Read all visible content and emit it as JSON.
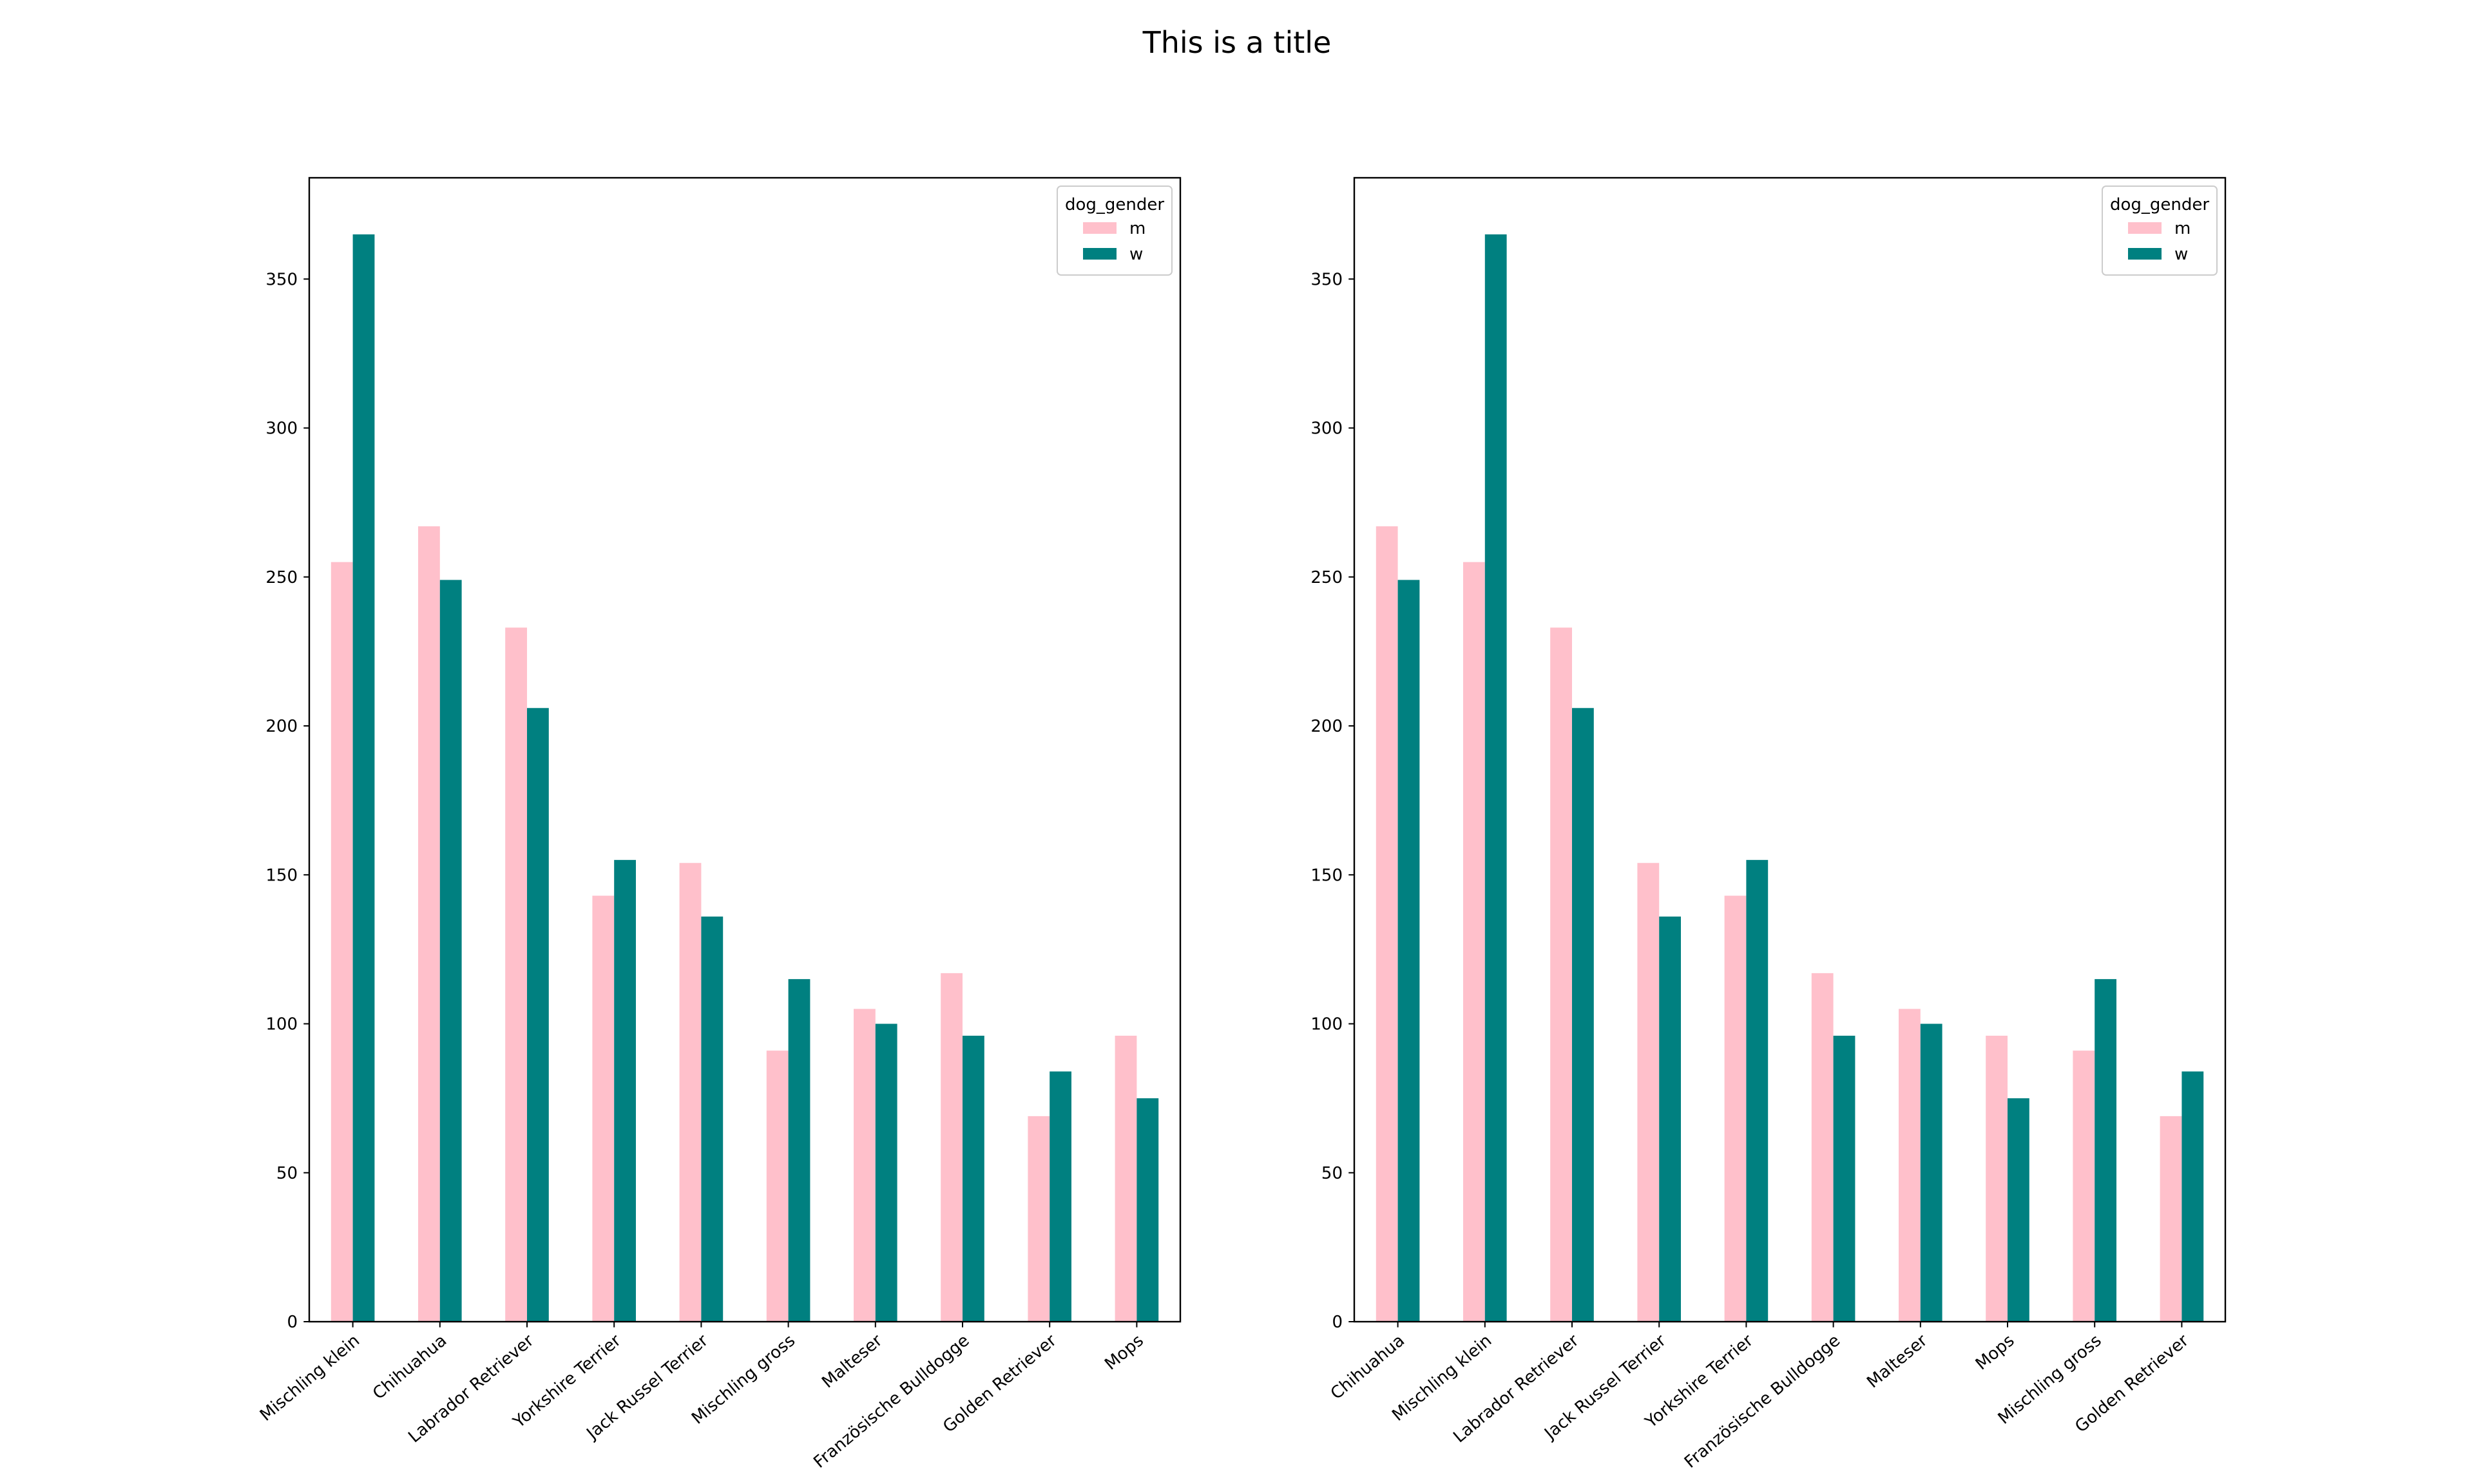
{
  "figure": {
    "title": "This is a title"
  },
  "chart_data": [
    {
      "type": "bar",
      "categories": [
        "Mischling klein",
        "Chihuahua",
        "Labrador Retriever",
        "Yorkshire Terrier",
        "Jack Russel Terrier",
        "Mischling gross",
        "Malteser",
        "Französische Bulldogge",
        "Golden Retriever",
        "Mops"
      ],
      "series": [
        {
          "name": "m",
          "color": "#ffc0cb",
          "values": [
            255,
            267,
            233,
            143,
            154,
            91,
            105,
            117,
            69,
            96
          ]
        },
        {
          "name": "w",
          "color": "#008080",
          "values": [
            365,
            249,
            206,
            155,
            136,
            115,
            100,
            96,
            84,
            75
          ]
        }
      ],
      "legend_title": "dog_gender",
      "legend_position": "top-right",
      "ylim": [
        0,
        384
      ],
      "yticks": [
        0,
        50,
        100,
        150,
        200,
        250,
        300,
        350
      ],
      "grid": false
    },
    {
      "type": "bar",
      "categories": [
        "Chihuahua",
        "Mischling klein",
        "Labrador Retriever",
        "Jack Russel Terrier",
        "Yorkshire Terrier",
        "Französische Bulldogge",
        "Malteser",
        "Mops",
        "Mischling gross",
        "Golden Retriever"
      ],
      "series": [
        {
          "name": "m",
          "color": "#ffc0cb",
          "values": [
            267,
            255,
            233,
            154,
            143,
            117,
            105,
            96,
            91,
            69
          ]
        },
        {
          "name": "w",
          "color": "#008080",
          "values": [
            249,
            365,
            206,
            136,
            155,
            96,
            100,
            75,
            115,
            84
          ]
        }
      ],
      "legend_title": "dog_gender",
      "legend_position": "top-right",
      "ylim": [
        0,
        384
      ],
      "yticks": [
        0,
        50,
        100,
        150,
        200,
        250,
        300,
        350
      ],
      "grid": false
    }
  ]
}
